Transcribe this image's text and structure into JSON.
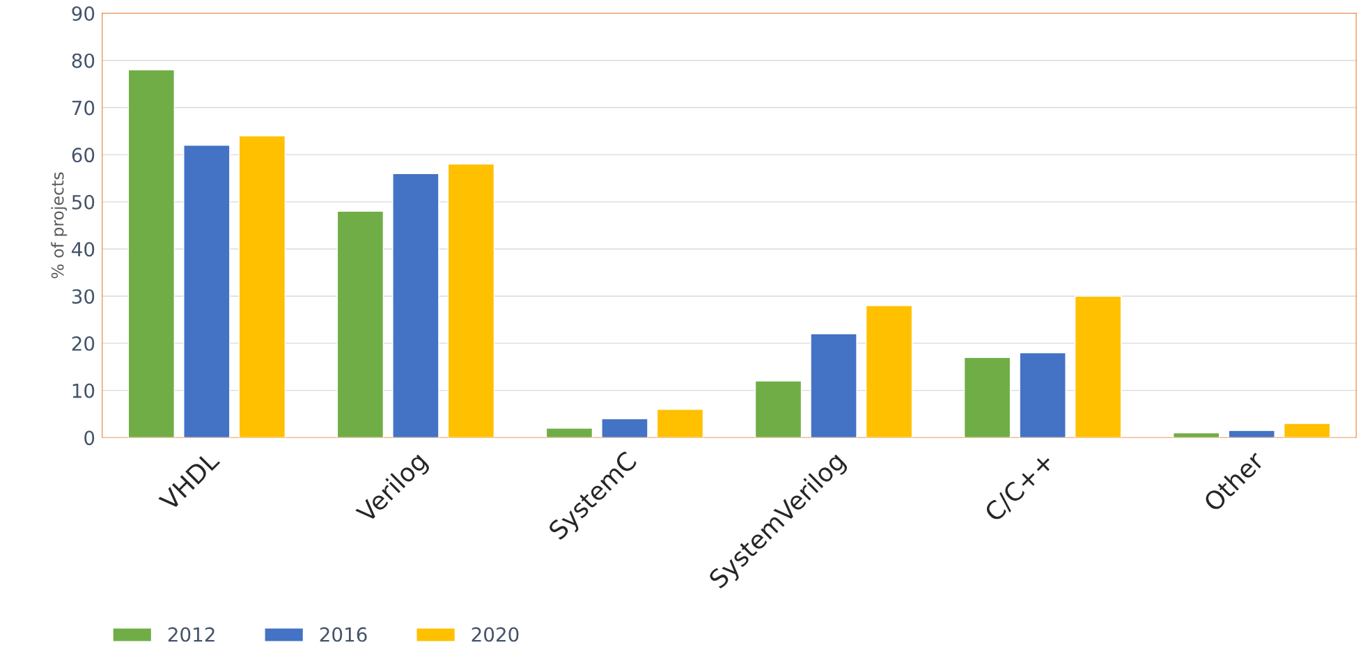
{
  "chart_data": {
    "type": "bar",
    "ylabel": "% of projects",
    "categories": [
      "VHDL",
      "Verilog",
      "SystemC",
      "SystemVerilog",
      "C/C++",
      "Other"
    ],
    "series": [
      {
        "name": "2012",
        "color": "#70ad47",
        "values": [
          78,
          48,
          2,
          12,
          17,
          1
        ]
      },
      {
        "name": "2016",
        "color": "#4472c4",
        "values": [
          62,
          56,
          4,
          22,
          18,
          1.5
        ]
      },
      {
        "name": "2020",
        "color": "#ffc000",
        "values": [
          64,
          58,
          6,
          28,
          30,
          3
        ]
      }
    ],
    "ylim": [
      0,
      90
    ],
    "yticks": [
      0,
      10,
      20,
      30,
      40,
      50,
      60,
      70,
      80,
      90
    ],
    "grid": "y",
    "legend": "bottom left"
  }
}
